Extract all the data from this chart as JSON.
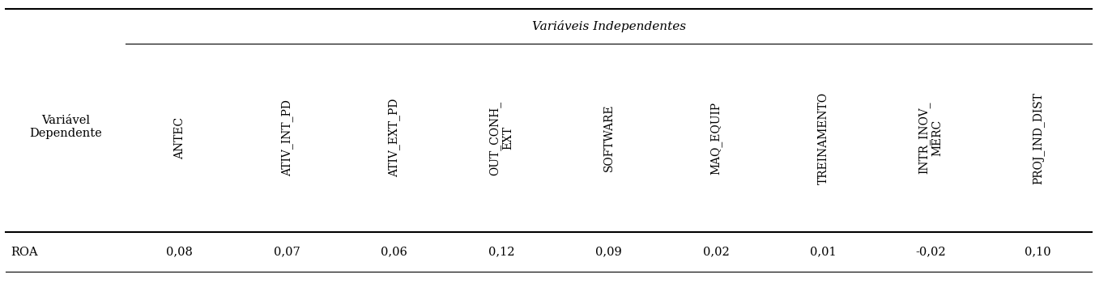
{
  "title": "Variáveis Independentes",
  "row_header_title": "Variável\nDependente",
  "col_headers": [
    "ANTEC",
    "ATIV_INT_PD",
    "ATIV_EXT_PD",
    "OUT_CONH_\nEXT",
    "SOFTWARE",
    "MAQ_EQUIP",
    "TREINAMENTO",
    "INTR_INOV_\nMERC",
    "PROJ_IND_DIST"
  ],
  "row_label": "ROA",
  "values": [
    "0,08",
    "0,07",
    "0,06",
    "0,12",
    "0,09",
    "0,02",
    "0,01",
    "-0,02",
    "0,10"
  ],
  "bg_color": "#ffffff",
  "text_color": "#000000",
  "fontsize": 10.5,
  "header_fontsize": 11
}
